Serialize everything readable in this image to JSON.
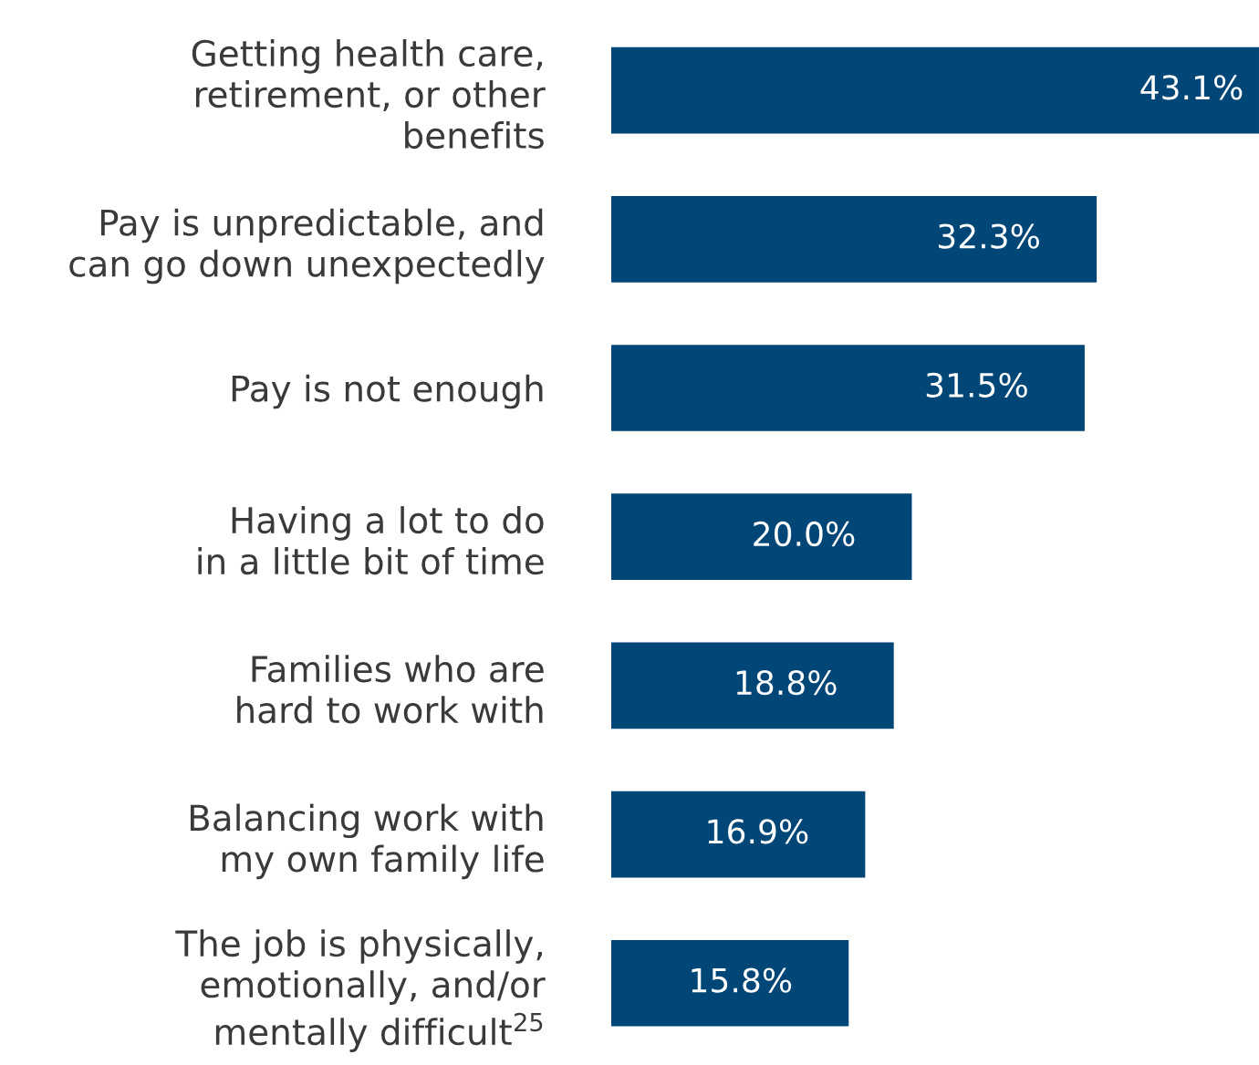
{
  "chart_data": {
    "type": "bar",
    "orientation": "horizontal",
    "categories": [
      "Getting health care,\nretirement, or other\nbenefits",
      "Pay is unpredictable, and\ncan go down unexpectedly",
      "Pay is not enough",
      "Having a lot to do\nin a little bit of time",
      "Families who are\nhard to work with",
      "Balancing work with\nmy own family life",
      "The job is physically,\nemotionally, and/or\nmentally difficult$^{25}$"
    ],
    "values": [
      43.1,
      32.3,
      31.5,
      20.0,
      18.8,
      16.9,
      15.8
    ],
    "value_labels": [
      "43.1%",
      "32.3%",
      "31.5%",
      "20.0%",
      "18.8%",
      "16.9%",
      "15.8%"
    ],
    "color": "#004677",
    "tick_labels": "y",
    "grid": false,
    "legend": false
  }
}
